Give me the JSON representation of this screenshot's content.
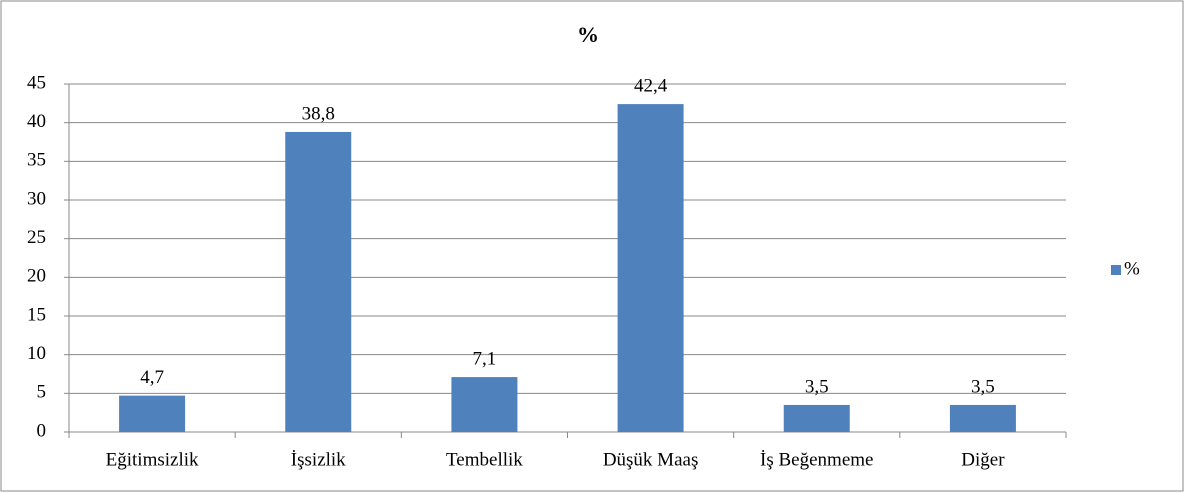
{
  "chart_data": {
    "type": "bar",
    "title": "%",
    "categories": [
      "Eğitimsizlik",
      "İşsizlik",
      "Tembellik",
      "Düşük Maaş",
      "İş Beğenmeme",
      "Diğer"
    ],
    "series": [
      {
        "name": "%",
        "color": "#4f81bd",
        "values": [
          4.7,
          38.8,
          7.1,
          42.4,
          3.5,
          3.5
        ],
        "value_labels": [
          "4,7",
          "38,8",
          "7,1",
          "42,4",
          "3,5",
          "3,5"
        ]
      }
    ],
    "ylim": [
      0,
      45
    ],
    "yticks": [
      0,
      5,
      10,
      15,
      20,
      25,
      30,
      35,
      40,
      45
    ],
    "grid": true,
    "legend": "right"
  }
}
